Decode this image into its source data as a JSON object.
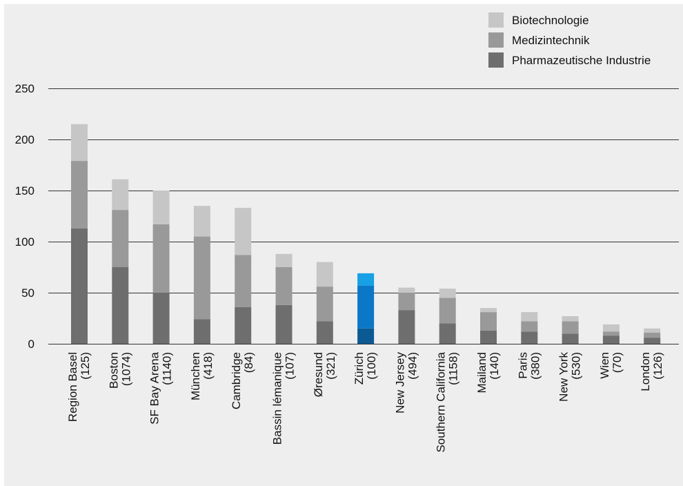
{
  "chart_data": {
    "type": "bar",
    "stacked": true,
    "categories": [
      {
        "name": "Region Basel",
        "count": "(125)"
      },
      {
        "name": "Boston",
        "count": "(1074)"
      },
      {
        "name": "SF Bay Arena",
        "count": "(1140)"
      },
      {
        "name": "München",
        "count": "(418)"
      },
      {
        "name": "Cambridge",
        "count": "(84)"
      },
      {
        "name": "Bassin lémanique",
        "count": "(107)"
      },
      {
        "name": "Øresund",
        "count": "(321)"
      },
      {
        "name": "Zürich",
        "count": "(100)"
      },
      {
        "name": "New Jersey",
        "count": "(494)"
      },
      {
        "name": "Southern California",
        "count": "(1158)"
      },
      {
        "name": "Mailand",
        "count": "(140)"
      },
      {
        "name": "Paris",
        "count": "(380)"
      },
      {
        "name": "New York",
        "count": "(530)"
      },
      {
        "name": "Wien",
        "count": "(70)"
      },
      {
        "name": "London",
        "count": "(126)"
      }
    ],
    "series": [
      {
        "name": "Pharmazeutische Industrie",
        "color": "#6e6e6e",
        "highlight_color": "#0b5a94",
        "values": [
          113,
          75,
          50,
          24,
          36,
          38,
          22,
          15,
          33,
          20,
          13,
          12,
          10,
          8,
          6
        ]
      },
      {
        "name": "Medizintechnik",
        "color": "#999999",
        "highlight_color": "#0a78c6",
        "values": [
          66,
          56,
          67,
          81,
          51,
          37,
          34,
          42,
          17,
          25,
          18,
          10,
          12,
          4,
          5
        ]
      },
      {
        "name": "Biotechnologie",
        "color": "#c6c6c6",
        "highlight_color": "#16a0e6",
        "values": [
          36,
          30,
          33,
          30,
          46,
          13,
          24,
          12,
          5,
          9,
          4,
          9,
          5,
          7,
          4
        ]
      }
    ],
    "highlight_category": "Zürich",
    "y_ticks": [
      0,
      50,
      100,
      150,
      200,
      250
    ],
    "ylim": [
      0,
      250
    ],
    "grid": true,
    "legend": {
      "placement": "top-right",
      "order": [
        "Biotechnologie",
        "Medizintechnik",
        "Pharmazeutische Industrie"
      ]
    },
    "colors": {
      "panel_background": "#eeeeee",
      "gridline": "#333333"
    }
  }
}
